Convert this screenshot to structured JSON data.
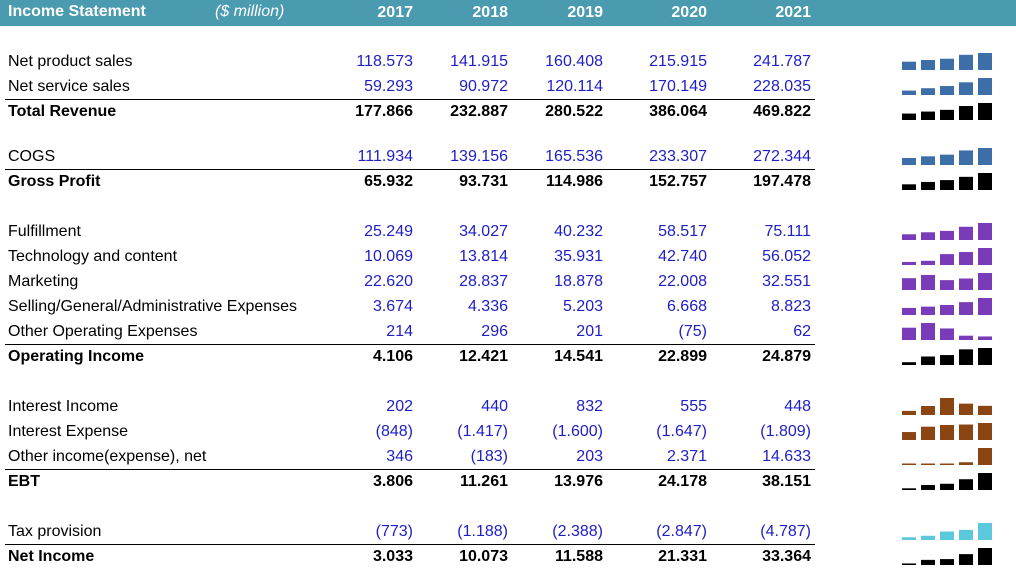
{
  "header": {
    "title": "Income Statement",
    "unit": "($ million)",
    "years": [
      "2017",
      "2018",
      "2019",
      "2020",
      "2021"
    ]
  },
  "rows": [
    {
      "label": "Net product sales",
      "type": "input",
      "values": [
        "118.573",
        "141.915",
        "160.408",
        "215.915",
        "241.787"
      ],
      "nums": [
        118.573,
        141.915,
        160.408,
        215.915,
        241.787
      ],
      "color": "#3d6ea8"
    },
    {
      "label": "Net service sales",
      "type": "input",
      "values": [
        "59.293",
        "90.972",
        "120.114",
        "170.149",
        "228.035"
      ],
      "nums": [
        59.293,
        90.972,
        120.114,
        170.149,
        228.035
      ],
      "color": "#3d6ea8"
    },
    {
      "label": "Total Revenue",
      "type": "total",
      "values": [
        "177.866",
        "232.887",
        "280.522",
        "386.064",
        "469.822"
      ],
      "nums": [
        177.866,
        232.887,
        280.522,
        386.064,
        469.822
      ],
      "color": "#000000"
    },
    {
      "label": "COGS",
      "type": "input",
      "values": [
        "111.934",
        "139.156",
        "165.536",
        "233.307",
        "272.344"
      ],
      "nums": [
        111.934,
        139.156,
        165.536,
        233.307,
        272.344
      ],
      "color": "#3d6ea8"
    },
    {
      "label": "Gross Profit",
      "type": "total",
      "values": [
        "65.932",
        "93.731",
        "114.986",
        "152.757",
        "197.478"
      ],
      "nums": [
        65.932,
        93.731,
        114.986,
        152.757,
        197.478
      ],
      "color": "#000000"
    },
    {
      "label": "Fulfillment",
      "type": "input",
      "values": [
        "25.249",
        "34.027",
        "40.232",
        "58.517",
        "75.111"
      ],
      "nums": [
        25.249,
        34.027,
        40.232,
        58.517,
        75.111
      ],
      "color": "#7a3bb8"
    },
    {
      "label": "Technology and content",
      "type": "input",
      "values": [
        "10.069",
        "13.814",
        "35.931",
        "42.740",
        "56.052"
      ],
      "nums": [
        10.069,
        13.814,
        35.931,
        42.74,
        56.052
      ],
      "color": "#7a3bb8"
    },
    {
      "label": "Marketing",
      "type": "input",
      "values": [
        "22.620",
        "28.837",
        "18.878",
        "22.008",
        "32.551"
      ],
      "nums": [
        22.62,
        28.837,
        18.878,
        22.008,
        32.551
      ],
      "color": "#7a3bb8"
    },
    {
      "label": "Selling/General/Administrative Expenses",
      "type": "input",
      "values": [
        "3.674",
        "4.336",
        "5.203",
        "6.668",
        "8.823"
      ],
      "nums": [
        3.674,
        4.336,
        5.203,
        6.668,
        8.823
      ],
      "color": "#7a3bb8"
    },
    {
      "label": "Other Operating Expenses",
      "type": "input",
      "values": [
        "214",
        "296",
        "201",
        "(75)",
        "62"
      ],
      "nums": [
        214,
        296,
        201,
        -75,
        62
      ],
      "color": "#7a3bb8"
    },
    {
      "label": "Operating Income",
      "type": "total",
      "values": [
        "4.106",
        "12.421",
        "14.541",
        "22.899",
        "24.879"
      ],
      "nums": [
        4.106,
        12.421,
        14.541,
        22.899,
        24.879
      ],
      "color": "#000000"
    },
    {
      "label": "Interest Income",
      "type": "input",
      "values": [
        "202",
        "440",
        "832",
        "555",
        "448"
      ],
      "nums": [
        202,
        440,
        832,
        555,
        448
      ],
      "color": "#8b4513"
    },
    {
      "label": "Interest Expense",
      "type": "input",
      "values": [
        "(848)",
        "(1.417)",
        "(1.600)",
        "(1.647)",
        "(1.809)"
      ],
      "nums": [
        -848,
        -1417,
        -1600,
        -1647,
        -1809
      ],
      "color": "#8b4513"
    },
    {
      "label": "Other income(expense), net",
      "type": "input",
      "values": [
        "346",
        "(183)",
        "203",
        "2.371",
        "14.633"
      ],
      "nums": [
        346,
        -183,
        203,
        2371,
        14633
      ],
      "color": "#8b4513"
    },
    {
      "label": "EBT",
      "type": "total",
      "values": [
        "3.806",
        "11.261",
        "13.976",
        "24.178",
        "38.151"
      ],
      "nums": [
        3.806,
        11.261,
        13.976,
        24.178,
        38.151
      ],
      "color": "#000000"
    },
    {
      "label": "Tax provision",
      "type": "input",
      "values": [
        "(773)",
        "(1.188)",
        "(2.388)",
        "(2.847)",
        "(4.787)"
      ],
      "nums": [
        -773,
        -1188,
        -2388,
        -2847,
        -4787
      ],
      "color": "#5bc8dc"
    },
    {
      "label": "Net Income",
      "type": "total",
      "values": [
        "3.033",
        "10.073",
        "11.588",
        "21.331",
        "33.364"
      ],
      "nums": [
        3.033,
        10.073,
        11.588,
        21.331,
        33.364
      ],
      "color": "#000000"
    }
  ]
}
